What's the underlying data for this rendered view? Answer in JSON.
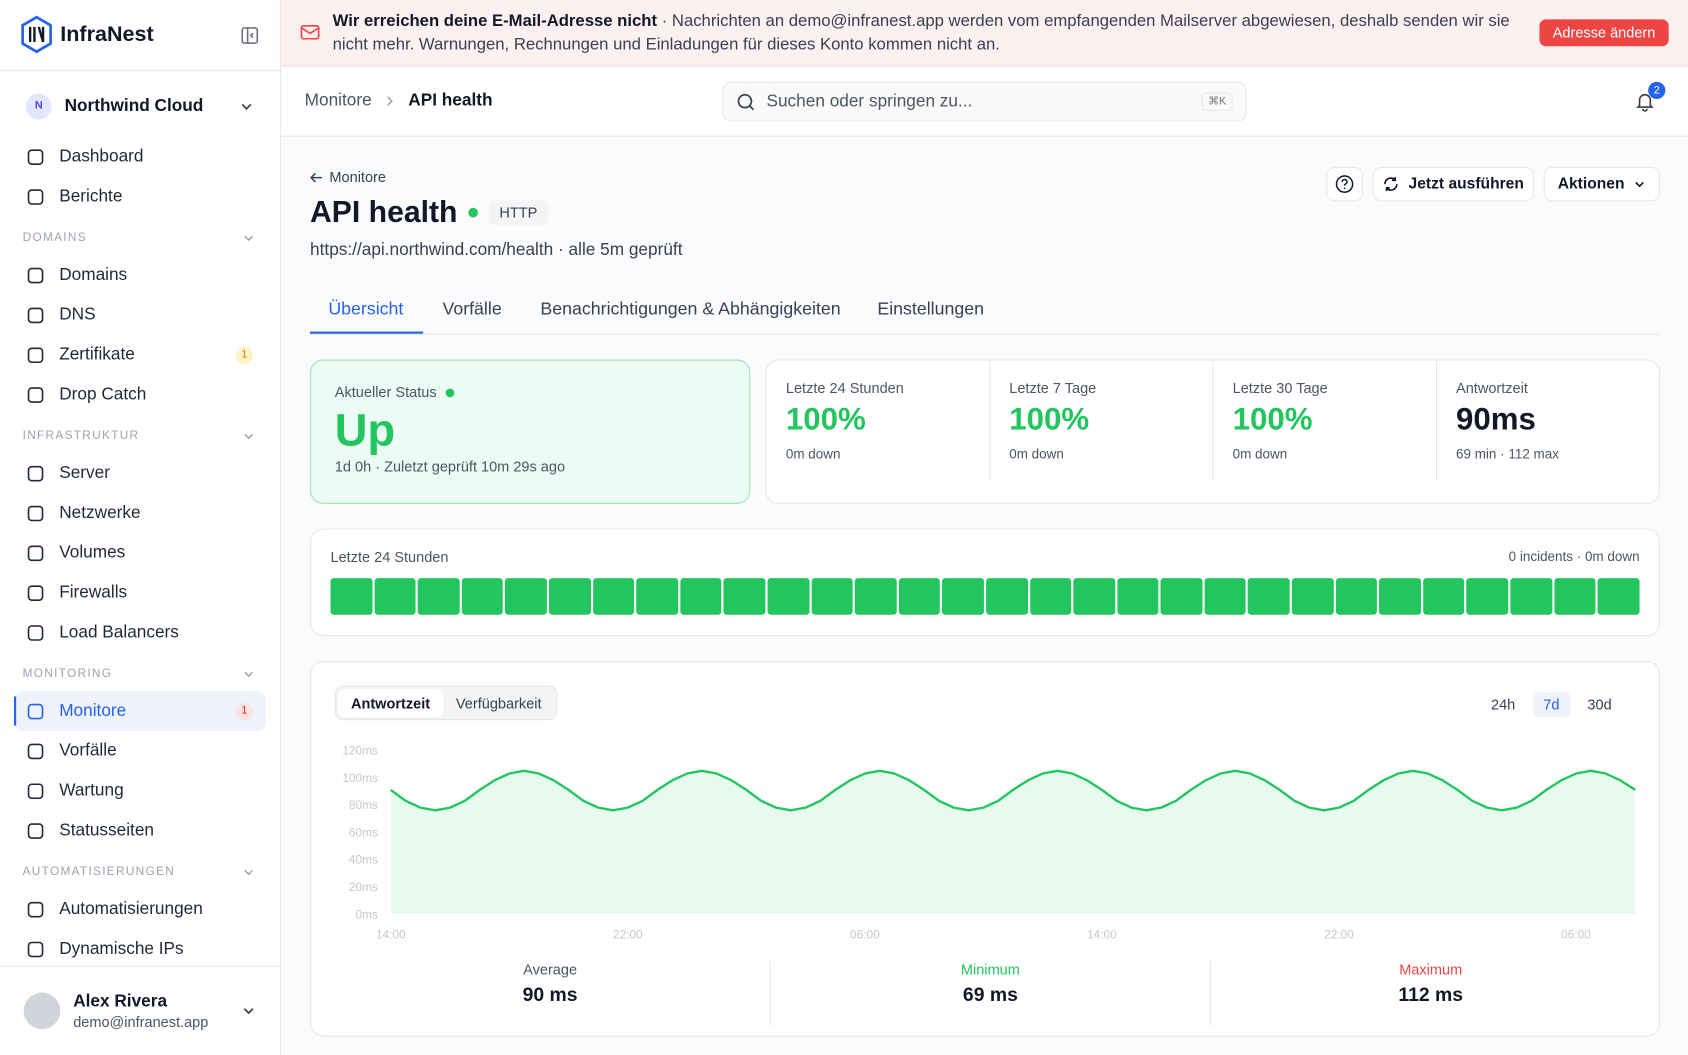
{
  "sidebar": {
    "brand": "InfraNest",
    "workspace": {
      "initial": "N",
      "name": "Northwind Cloud"
    },
    "nav": [
      {
        "label": "Dashboard"
      },
      {
        "label": "Berichte"
      }
    ],
    "sections": [
      {
        "title": "DOMAINS",
        "items": [
          {
            "label": "Domains"
          },
          {
            "label": "DNS"
          },
          {
            "label": "Zertifikate",
            "badge": "1"
          },
          {
            "label": "Drop Catch"
          }
        ]
      },
      {
        "title": "INFRASTRUKTUR",
        "items": [
          {
            "label": "Server"
          },
          {
            "label": "Netzwerke"
          },
          {
            "label": "Volumes"
          },
          {
            "label": "Firewalls"
          },
          {
            "label": "Load Balancers"
          }
        ]
      },
      {
        "title": "MONITORING",
        "items": [
          {
            "label": "Monitore",
            "badge": "1",
            "active": true
          },
          {
            "label": "Vorfälle"
          },
          {
            "label": "Wartung"
          },
          {
            "label": "Statusseiten"
          }
        ]
      },
      {
        "title": "AUTOMATISIERUNGEN",
        "items": [
          {
            "label": "Automatisierungen"
          },
          {
            "label": "Dynamische IPs"
          }
        ]
      }
    ],
    "user": {
      "name": "Alex Rivera",
      "email": "demo@infranest.app"
    }
  },
  "banner": {
    "title": "Wir erreichen deine E-Mail-Adresse nicht",
    "message": "· Nachrichten an demo@infranest.app werden vom empfangenden Mailserver abgewiesen, deshalb senden wir sie nicht mehr. Warnungen, Rechnungen und Einladungen für dieses Konto kommen nicht an.",
    "button": "Adresse ändern"
  },
  "topbar": {
    "breadcrumb": [
      "Monitore",
      "API health"
    ],
    "search": "Suchen oder springen zu...",
    "shortcut": "⌘K",
    "notifications": "2"
  },
  "monitor": {
    "back": "Monitore",
    "title": "API health",
    "type": "HTTP",
    "url": "https://api.northwind.com/health · alle 5m geprüft",
    "actions": [
      "Jetzt ausführen",
      "Aktionen"
    ],
    "tabs": [
      "Übersicht",
      "Vorfälle",
      "Benachrichtigungen & Abhängigkeiten",
      "Einstellungen"
    ],
    "status": {
      "label": "Aktueller Status",
      "value": "Up",
      "detail": "1d 0h · Zuletzt geprüft 10m 29s ago"
    },
    "stats": [
      {
        "label": "Letzte 24 Stunden",
        "value": "100%",
        "detail": "0m down"
      },
      {
        "label": "Letzte 7 Tage",
        "value": "100%",
        "detail": "0m down"
      },
      {
        "label": "Letzte 30 Tage",
        "value": "100%",
        "detail": "0m down"
      },
      {
        "label": "Antwortzeit",
        "value": "90ms",
        "detail": "69 min · 112 max"
      }
    ],
    "uptime": {
      "label": "Letzte 24 Stunden",
      "summary": "0 incidents · 0m down"
    },
    "chart_tabs": [
      "Antwortzeit",
      "Verfügbarkeit"
    ],
    "ranges": [
      "24h",
      "7d",
      "30d"
    ],
    "summary": [
      {
        "label": "Average",
        "value": "90 ms"
      },
      {
        "label": "Minimum",
        "value": "69 ms"
      },
      {
        "label": "Maximum",
        "value": "112 ms"
      }
    ]
  },
  "chart_data": {
    "type": "area",
    "categories": [
      "14:00",
      null,
      null,
      null,
      null,
      null,
      null,
      null,
      null,
      null,
      null,
      null,
      null,
      null,
      null,
      null,
      "22:00",
      null,
      null,
      null,
      null,
      null,
      null,
      null,
      null,
      null,
      null,
      null,
      null,
      null,
      null,
      null,
      "06:00",
      null,
      null,
      null,
      null,
      null,
      null,
      null,
      null,
      null,
      null,
      null,
      null,
      null,
      null,
      null,
      "14:00",
      null,
      null,
      null,
      null,
      null,
      null,
      null,
      null,
      null,
      null,
      null,
      null,
      null,
      null,
      null,
      "22:00",
      null,
      null,
      null,
      null,
      null,
      null,
      null,
      null,
      null,
      null,
      null,
      null,
      null,
      null,
      null,
      "06:00",
      null,
      null,
      null,
      null
    ],
    "series": [
      {
        "color": "#22c55e",
        "values": [
          91,
          83,
          78,
          76,
          78,
          83,
          91,
          98,
          103,
          105,
          103,
          98,
          91,
          83,
          78,
          76,
          78,
          83,
          91,
          98,
          103,
          105,
          103,
          98,
          91,
          83,
          78,
          76,
          78,
          83,
          91,
          98,
          103,
          105,
          103,
          98,
          91,
          83,
          78,
          76,
          78,
          83,
          91,
          98,
          103,
          105,
          103,
          98,
          91,
          83,
          78,
          76,
          78,
          83,
          91,
          98,
          103,
          105,
          103,
          98,
          91,
          83,
          78,
          76,
          78,
          83,
          91,
          98,
          103,
          105,
          103,
          98,
          91,
          83,
          78,
          76,
          78,
          83,
          91,
          98,
          103,
          105,
          103,
          98,
          91
        ]
      }
    ],
    "ylim": [
      0,
      120
    ],
    "yticks": [
      {
        "value": 0,
        "label": "0ms"
      },
      {
        "value": 20,
        "label": "20ms"
      },
      {
        "value": 40,
        "label": "40ms"
      },
      {
        "value": 60,
        "label": "60ms"
      },
      {
        "value": 80,
        "label": "80ms"
      },
      {
        "value": 100,
        "label": "100ms"
      },
      {
        "value": 120,
        "label": "120ms"
      }
    ]
  }
}
